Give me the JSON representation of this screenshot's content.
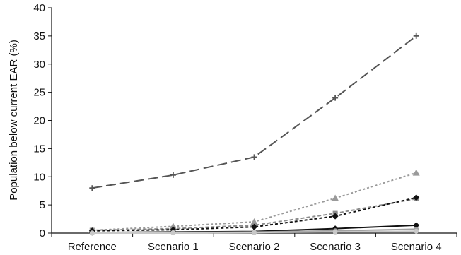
{
  "chart_data": {
    "type": "line",
    "title": "",
    "xlabel": "",
    "ylabel": "Population below current EAR (%)",
    "ylim": [
      0,
      40
    ],
    "yticks": [
      0,
      5,
      10,
      15,
      20,
      25,
      30,
      35,
      40
    ],
    "categories": [
      "Reference",
      "Scenario 1",
      "Scenario 2",
      "Scenario 3",
      "Scenario 4"
    ],
    "grid": false,
    "legend": "none",
    "series": [
      {
        "values": [
          8.0,
          10.3,
          13.5,
          24.0,
          35.0
        ],
        "color": "#555555",
        "dash": "14,6",
        "marker": "plus"
      },
      {
        "values": [
          0.5,
          1.2,
          2.0,
          6.2,
          10.7
        ],
        "color": "#9a9a9a",
        "dash": "3,3",
        "marker": "triangle"
      },
      {
        "values": [
          0.5,
          0.8,
          1.4,
          3.5,
          6.1
        ],
        "color": "#8c8c8c",
        "dash": "5,3",
        "marker": "square"
      },
      {
        "values": [
          0.4,
          0.6,
          1.1,
          3.0,
          6.3
        ],
        "color": "#111111",
        "dash": "4,3",
        "marker": "diamond"
      },
      {
        "values": [
          0.1,
          0.2,
          0.3,
          0.8,
          1.4
        ],
        "color": "#111111",
        "dash": "",
        "marker": "diamond"
      },
      {
        "values": [
          0.05,
          0.1,
          0.2,
          0.4,
          0.7
        ],
        "color": "#a0a0a0",
        "dash": "",
        "marker": "circle"
      },
      {
        "values": [
          0.0,
          0.05,
          0.1,
          0.2,
          0.35
        ],
        "color": "#c8c8c8",
        "dash": "",
        "marker": "circle"
      }
    ]
  }
}
